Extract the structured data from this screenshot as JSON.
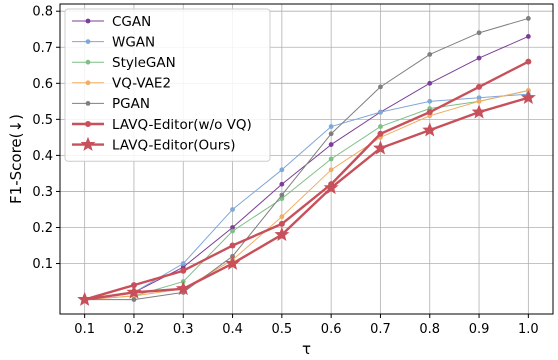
{
  "chart_data": {
    "type": "line",
    "xlabel": "τ",
    "ylabel": "F1-Score(↓)",
    "xlim": [
      0.05,
      1.05
    ],
    "ylim": [
      -0.04,
      0.82
    ],
    "grid": true,
    "legend_position": "top-left",
    "x": [
      0.1,
      0.2,
      0.3,
      0.4,
      0.5,
      0.6,
      0.7,
      0.8,
      0.9,
      1.0
    ],
    "x_tick_labels": [
      "0.1",
      "0.2",
      "0.3",
      "0.4",
      "0.5",
      "0.6",
      "0.7",
      "0.8",
      "0.9",
      "1.0"
    ],
    "y_ticks": [
      0.1,
      0.2,
      0.3,
      0.4,
      0.5,
      0.6,
      0.7,
      0.8
    ],
    "y_tick_labels": [
      "0.1",
      "0.2",
      "0.3",
      "0.4",
      "0.5",
      "0.6",
      "0.7",
      "0.8"
    ],
    "series": [
      {
        "name": "CGAN",
        "color": "#7b3f98",
        "marker": "dot",
        "bold": false,
        "values": [
          0.0,
          0.02,
          0.09,
          0.2,
          0.32,
          0.43,
          0.52,
          0.6,
          0.67,
          0.73
        ]
      },
      {
        "name": "WGAN",
        "color": "#7fa7d8",
        "marker": "dot",
        "bold": false,
        "values": [
          0.0,
          0.02,
          0.1,
          0.25,
          0.36,
          0.48,
          0.52,
          0.55,
          0.56,
          0.57
        ]
      },
      {
        "name": "StyleGAN",
        "color": "#7fbf86",
        "marker": "dot",
        "bold": false,
        "values": [
          0.0,
          0.01,
          0.05,
          0.19,
          0.28,
          0.39,
          0.48,
          0.53,
          0.55,
          0.58
        ]
      },
      {
        "name": "VQ-VAE2",
        "color": "#f0ad62",
        "marker": "dot",
        "bold": false,
        "values": [
          0.0,
          0.01,
          0.03,
          0.11,
          0.23,
          0.36,
          0.45,
          0.51,
          0.55,
          0.58
        ]
      },
      {
        "name": "PGAN",
        "color": "#7f7f7f",
        "marker": "dot",
        "bold": false,
        "values": [
          0.0,
          0.0,
          0.02,
          0.12,
          0.29,
          0.46,
          0.59,
          0.68,
          0.74,
          0.78
        ]
      },
      {
        "name": "LAVQ-Editor(w/o VQ)",
        "color": "#c8505a",
        "marker": "dot",
        "bold": true,
        "values": [
          0.0,
          0.04,
          0.08,
          0.15,
          0.21,
          0.32,
          0.46,
          0.52,
          0.59,
          0.66
        ]
      },
      {
        "name": "LAVQ-Editor(Ours)",
        "color": "#c8505a",
        "marker": "star",
        "bold": true,
        "values": [
          0.0,
          0.02,
          0.03,
          0.1,
          0.18,
          0.31,
          0.42,
          0.47,
          0.52,
          0.56
        ]
      }
    ]
  }
}
